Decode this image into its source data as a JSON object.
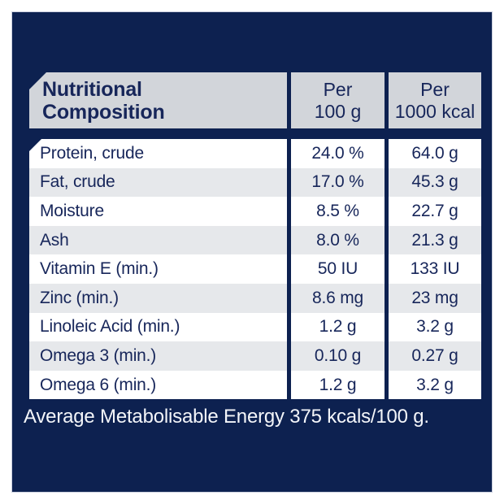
{
  "colors": {
    "page_background": "#FFFFFF",
    "panel_navy": "#0D2150",
    "panel_edge": "#CDD1E0",
    "header_gray": "#D2D5DA",
    "row_gray": "#E6E8EB",
    "row_white": "#FFFFFF",
    "text_navy": "#17265A",
    "footer_text": "#F3F5F9"
  },
  "table": {
    "header": {
      "composition": {
        "line1": "Nutritional",
        "line2": "Composition"
      },
      "per_100g": {
        "line1": "Per",
        "line2": "100 g"
      },
      "per_1000kcal": {
        "line1": "Per",
        "line2": "1000 kcal"
      }
    },
    "rows": [
      {
        "name": "Protein, crude",
        "per_100g": "24.0 %",
        "per_1000kcal": "64.0 g"
      },
      {
        "name": "Fat, crude",
        "per_100g": "17.0 %",
        "per_1000kcal": "45.3 g"
      },
      {
        "name": "Moisture",
        "per_100g": "8.5 %",
        "per_1000kcal": "22.7 g"
      },
      {
        "name": "Ash",
        "per_100g": "8.0 %",
        "per_1000kcal": "21.3 g"
      },
      {
        "name": "Vitamin E (min.)",
        "per_100g": "50 IU",
        "per_1000kcal": "133 IU"
      },
      {
        "name": "Zinc (min.)",
        "per_100g": "8.6 mg",
        "per_1000kcal": "23 mg"
      },
      {
        "name": "Linoleic Acid (min.)",
        "per_100g": "1.2 g",
        "per_1000kcal": "3.2 g"
      },
      {
        "name": "Omega 3 (min.)",
        "per_100g": "0.10 g",
        "per_1000kcal": "0.27 g"
      },
      {
        "name": "Omega 6 (min.)",
        "per_100g": "1.2 g",
        "per_1000kcal": "3.2 g"
      }
    ]
  },
  "footer": {
    "text": "Average Metabolisable Energy 375 kcals/100 g."
  }
}
